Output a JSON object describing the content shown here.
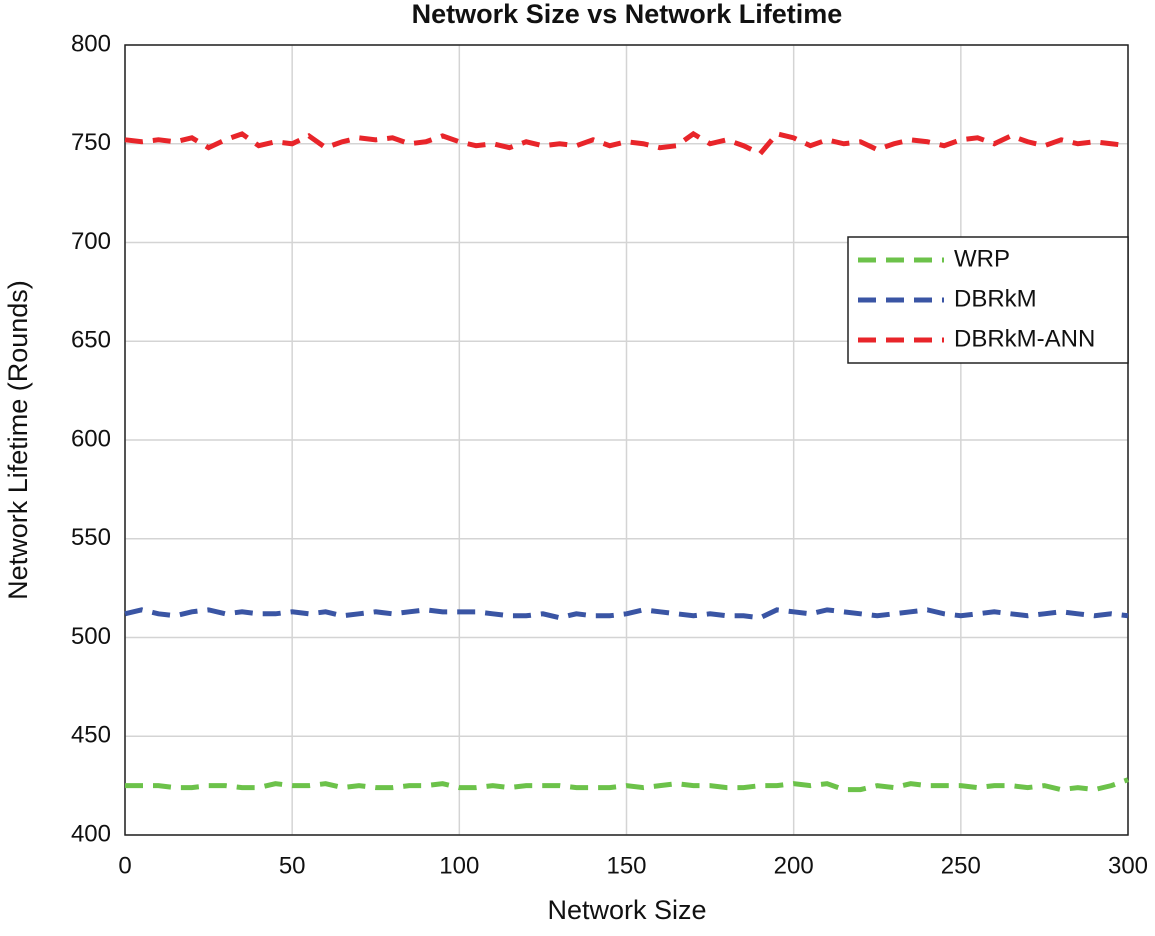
{
  "chart_data": {
    "type": "line",
    "title": "Network Size vs Network Lifetime",
    "x_label": "Network Size",
    "y_label": "Network Lifetime (Rounds)",
    "x": [
      0,
      5,
      10,
      15,
      20,
      25,
      30,
      35,
      40,
      45,
      50,
      55,
      60,
      65,
      70,
      75,
      80,
      85,
      90,
      95,
      100,
      105,
      110,
      115,
      120,
      125,
      130,
      135,
      140,
      145,
      150,
      155,
      160,
      165,
      170,
      175,
      180,
      185,
      190,
      195,
      200,
      205,
      210,
      215,
      220,
      225,
      230,
      235,
      240,
      245,
      250,
      255,
      260,
      265,
      270,
      275,
      280,
      285,
      290,
      295,
      300
    ],
    "series": [
      {
        "name": "WRP",
        "color": "#6cc24a",
        "values": [
          425,
          425,
          425,
          424,
          424,
          425,
          425,
          424,
          424,
          426,
          425,
          425,
          426,
          424,
          425,
          424,
          424,
          425,
          425,
          426,
          424,
          424,
          425,
          424,
          425,
          425,
          425,
          424,
          424,
          424,
          425,
          424,
          425,
          426,
          425,
          425,
          424,
          424,
          425,
          425,
          426,
          425,
          426,
          423,
          423,
          425,
          424,
          426,
          425,
          425,
          425,
          424,
          425,
          425,
          424,
          425,
          423,
          424,
          423,
          425,
          428
        ]
      },
      {
        "name": "DBRkM",
        "color": "#3a55a4",
        "values": [
          512,
          514,
          512,
          511,
          513,
          514,
          512,
          513,
          512,
          512,
          513,
          512,
          513,
          511,
          512,
          513,
          512,
          513,
          514,
          513,
          513,
          513,
          512,
          511,
          511,
          512,
          510,
          512,
          511,
          511,
          512,
          514,
          513,
          512,
          511,
          512,
          511,
          511,
          510,
          514,
          513,
          512,
          514,
          513,
          512,
          511,
          512,
          513,
          514,
          512,
          511,
          512,
          513,
          512,
          511,
          512,
          513,
          512,
          511,
          512,
          511
        ]
      },
      {
        "name": "DBRkM-ANN",
        "color": "#e8252a",
        "values": [
          752,
          751,
          752,
          751,
          753,
          748,
          752,
          755,
          749,
          751,
          750,
          754,
          748,
          751,
          753,
          752,
          753,
          750,
          751,
          754,
          751,
          749,
          750,
          748,
          751,
          749,
          750,
          749,
          752,
          749,
          751,
          750,
          748,
          749,
          755,
          750,
          752,
          749,
          745,
          755,
          753,
          749,
          752,
          750,
          751,
          747,
          750,
          752,
          751,
          749,
          752,
          753,
          750,
          754,
          751,
          749,
          752,
          750,
          751,
          750,
          749
        ]
      }
    ],
    "xlim": [
      0,
      300
    ],
    "xticks": [
      0,
      50,
      100,
      150,
      200,
      250,
      300
    ],
    "ylim": [
      400,
      800
    ],
    "yticks": [
      400,
      450,
      500,
      550,
      600,
      650,
      700,
      750,
      800
    ],
    "grid": true,
    "legend": "northeast"
  }
}
